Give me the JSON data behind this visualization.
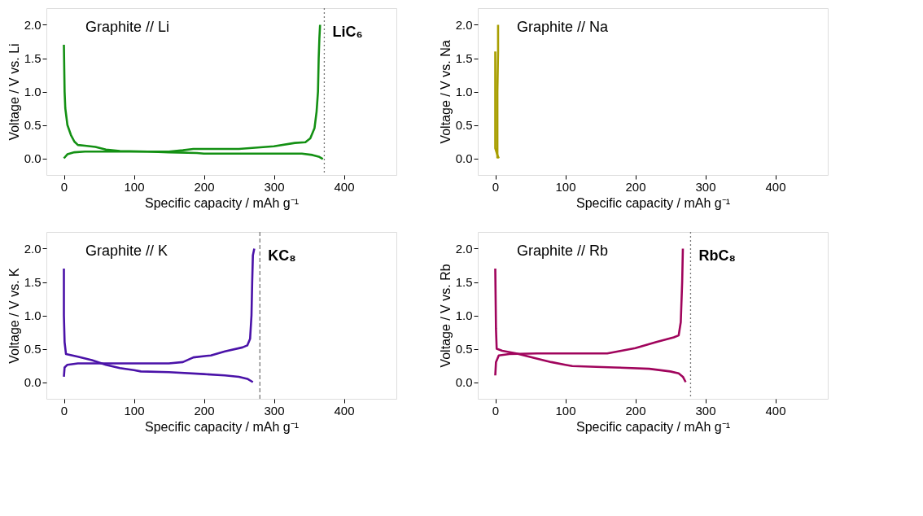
{
  "chart_data": [
    {
      "type": "line",
      "xlabel": "Specific capacity / mAh g⁻¹",
      "ylabel": "Voltage / V vs. Li",
      "annotations": [
        "Graphite // Li"
      ],
      "xlim": [
        -25,
        475
      ],
      "ylim": [
        -0.25,
        2.25
      ],
      "xticks": [
        0,
        100,
        200,
        300,
        400
      ],
      "yticks": [
        {
          "value": 0,
          "label": "0.0"
        },
        {
          "value": 0.5,
          "label": "0.5"
        },
        {
          "value": 1,
          "label": "1.0"
        },
        {
          "value": 1.5,
          "label": "1.5"
        },
        {
          "value": 2,
          "label": "2.0"
        }
      ],
      "line_style": "solid",
      "marker": "none",
      "ref_lines": [
        {
          "axis": "x",
          "value": 372,
          "label": "LiC₆",
          "line_style": "dotted",
          "color": "#777777"
        }
      ],
      "series": [
        {
          "color": "#139013",
          "x": [
            0,
            1,
            2,
            5,
            10,
            15,
            20,
            30,
            45,
            60,
            80,
            120,
            150,
            190,
            200,
            250,
            300,
            340,
            355,
            365,
            370
          ],
          "values": [
            1.7,
            1.0,
            0.75,
            0.5,
            0.35,
            0.25,
            0.2,
            0.19,
            0.17,
            0.13,
            0.11,
            0.1,
            0.09,
            0.08,
            0.07,
            0.07,
            0.07,
            0.07,
            0.05,
            0.02,
            -0.01
          ]
        },
        {
          "color": "#139013",
          "x": [
            0,
            5,
            15,
            30,
            100,
            150,
            170,
            185,
            250,
            300,
            330,
            345,
            352,
            358,
            361,
            363,
            364,
            365,
            366
          ],
          "values": [
            0.0,
            0.06,
            0.09,
            0.1,
            0.1,
            0.1,
            0.12,
            0.14,
            0.14,
            0.18,
            0.23,
            0.24,
            0.3,
            0.45,
            0.7,
            1.0,
            1.5,
            1.8,
            2.0
          ]
        }
      ]
    },
    {
      "type": "line",
      "xlabel": "Specific capacity / mAh g⁻¹",
      "ylabel": "Voltage / V vs. Na",
      "annotations": [
        "Graphite // Na"
      ],
      "xlim": [
        -25,
        475
      ],
      "ylim": [
        -0.25,
        2.25
      ],
      "xticks": [
        0,
        100,
        200,
        300,
        400
      ],
      "yticks": [
        {
          "value": 0,
          "label": "0.0"
        },
        {
          "value": 0.5,
          "label": "0.5"
        },
        {
          "value": 1,
          "label": "1.0"
        },
        {
          "value": 1.5,
          "label": "1.5"
        },
        {
          "value": 2,
          "label": "2.0"
        }
      ],
      "line_style": "solid",
      "marker": "none",
      "series": [
        {
          "color": "#a89e00",
          "x": [
            0,
            0,
            0,
            3,
            5
          ],
          "values": [
            1.6,
            0.5,
            0.15,
            0.05,
            0.0
          ]
        },
        {
          "color": "#a89e00",
          "x": [
            3,
            3,
            3,
            4,
            4
          ],
          "values": [
            0.0,
            0.5,
            1.0,
            1.6,
            2.0
          ]
        }
      ]
    },
    {
      "type": "line",
      "xlabel": "Specific capacity / mAh g⁻¹",
      "ylabel": "Voltage / V vs. K",
      "annotations": [
        "Graphite // K"
      ],
      "xlim": [
        -25,
        475
      ],
      "ylim": [
        -0.25,
        2.25
      ],
      "xticks": [
        0,
        100,
        200,
        300,
        400
      ],
      "yticks": [
        {
          "value": 0,
          "label": "0.0"
        },
        {
          "value": 0.5,
          "label": "0.5"
        },
        {
          "value": 1,
          "label": "1.0"
        },
        {
          "value": 1.5,
          "label": "1.5"
        },
        {
          "value": 2,
          "label": "2.0"
        }
      ],
      "line_style": "solid",
      "marker": "none",
      "ref_lines": [
        {
          "axis": "x",
          "value": 280,
          "label": "KC₈",
          "line_style": "dashed",
          "color": "#777777"
        }
      ],
      "series": [
        {
          "color": "#4a12a8",
          "x": [
            0,
            0,
            1,
            3,
            20,
            40,
            60,
            80,
            100,
            110,
            150,
            200,
            230,
            250,
            262,
            270
          ],
          "values": [
            1.7,
            1.0,
            0.6,
            0.42,
            0.38,
            0.33,
            0.26,
            0.21,
            0.18,
            0.16,
            0.15,
            0.12,
            0.1,
            0.08,
            0.05,
            0.0
          ]
        },
        {
          "color": "#4a12a8",
          "x": [
            0,
            1,
            5,
            20,
            100,
            150,
            170,
            185,
            210,
            230,
            255,
            262,
            266,
            268,
            269,
            270,
            272
          ],
          "values": [
            0.08,
            0.22,
            0.26,
            0.28,
            0.28,
            0.28,
            0.3,
            0.37,
            0.4,
            0.46,
            0.52,
            0.55,
            0.65,
            1.0,
            1.5,
            1.9,
            2.0
          ]
        }
      ]
    },
    {
      "type": "line",
      "xlabel": "Specific capacity / mAh g⁻¹",
      "ylabel": "Voltage / V vs. Rb",
      "annotations": [
        "Graphite // Rb"
      ],
      "xlim": [
        -25,
        475
      ],
      "ylim": [
        -0.25,
        2.25
      ],
      "xticks": [
        0,
        100,
        200,
        300,
        400
      ],
      "yticks": [
        {
          "value": 0,
          "label": "0.0"
        },
        {
          "value": 0.5,
          "label": "0.5"
        },
        {
          "value": 1,
          "label": "1.0"
        },
        {
          "value": 1.5,
          "label": "1.5"
        },
        {
          "value": 2,
          "label": "2.0"
        }
      ],
      "line_style": "solid",
      "marker": "none",
      "ref_lines": [
        {
          "axis": "x",
          "value": 279,
          "label": "RbC₈",
          "line_style": "dotted",
          "color": "#777777"
        }
      ],
      "series": [
        {
          "color": "#a0045c",
          "x": [
            0,
            1,
            2,
            10,
            30,
            60,
            80,
            100,
            110,
            170,
            220,
            250,
            262,
            268,
            272
          ],
          "values": [
            1.7,
            0.8,
            0.5,
            0.47,
            0.43,
            0.35,
            0.3,
            0.26,
            0.24,
            0.22,
            0.2,
            0.16,
            0.13,
            0.08,
            0.0
          ]
        },
        {
          "color": "#a0045c",
          "x": [
            0,
            1,
            5,
            20,
            60,
            160,
            180,
            200,
            230,
            255,
            262,
            265,
            267,
            268
          ],
          "values": [
            0.1,
            0.3,
            0.4,
            0.42,
            0.43,
            0.43,
            0.47,
            0.51,
            0.6,
            0.67,
            0.7,
            0.9,
            1.5,
            2.0
          ]
        }
      ]
    }
  ]
}
